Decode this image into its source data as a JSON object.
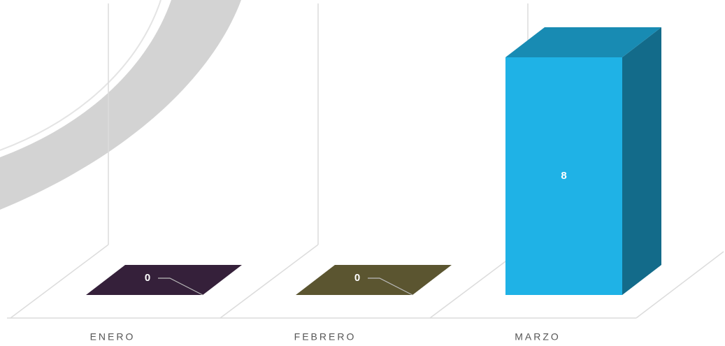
{
  "chart_data": {
    "type": "bar3d",
    "categories": [
      "ENERO",
      "FEBRERO",
      "MARZO"
    ],
    "values": [
      0,
      0,
      8
    ],
    "colors": [
      "#35203a",
      "#5b5530",
      "#1fb2e6"
    ]
  }
}
